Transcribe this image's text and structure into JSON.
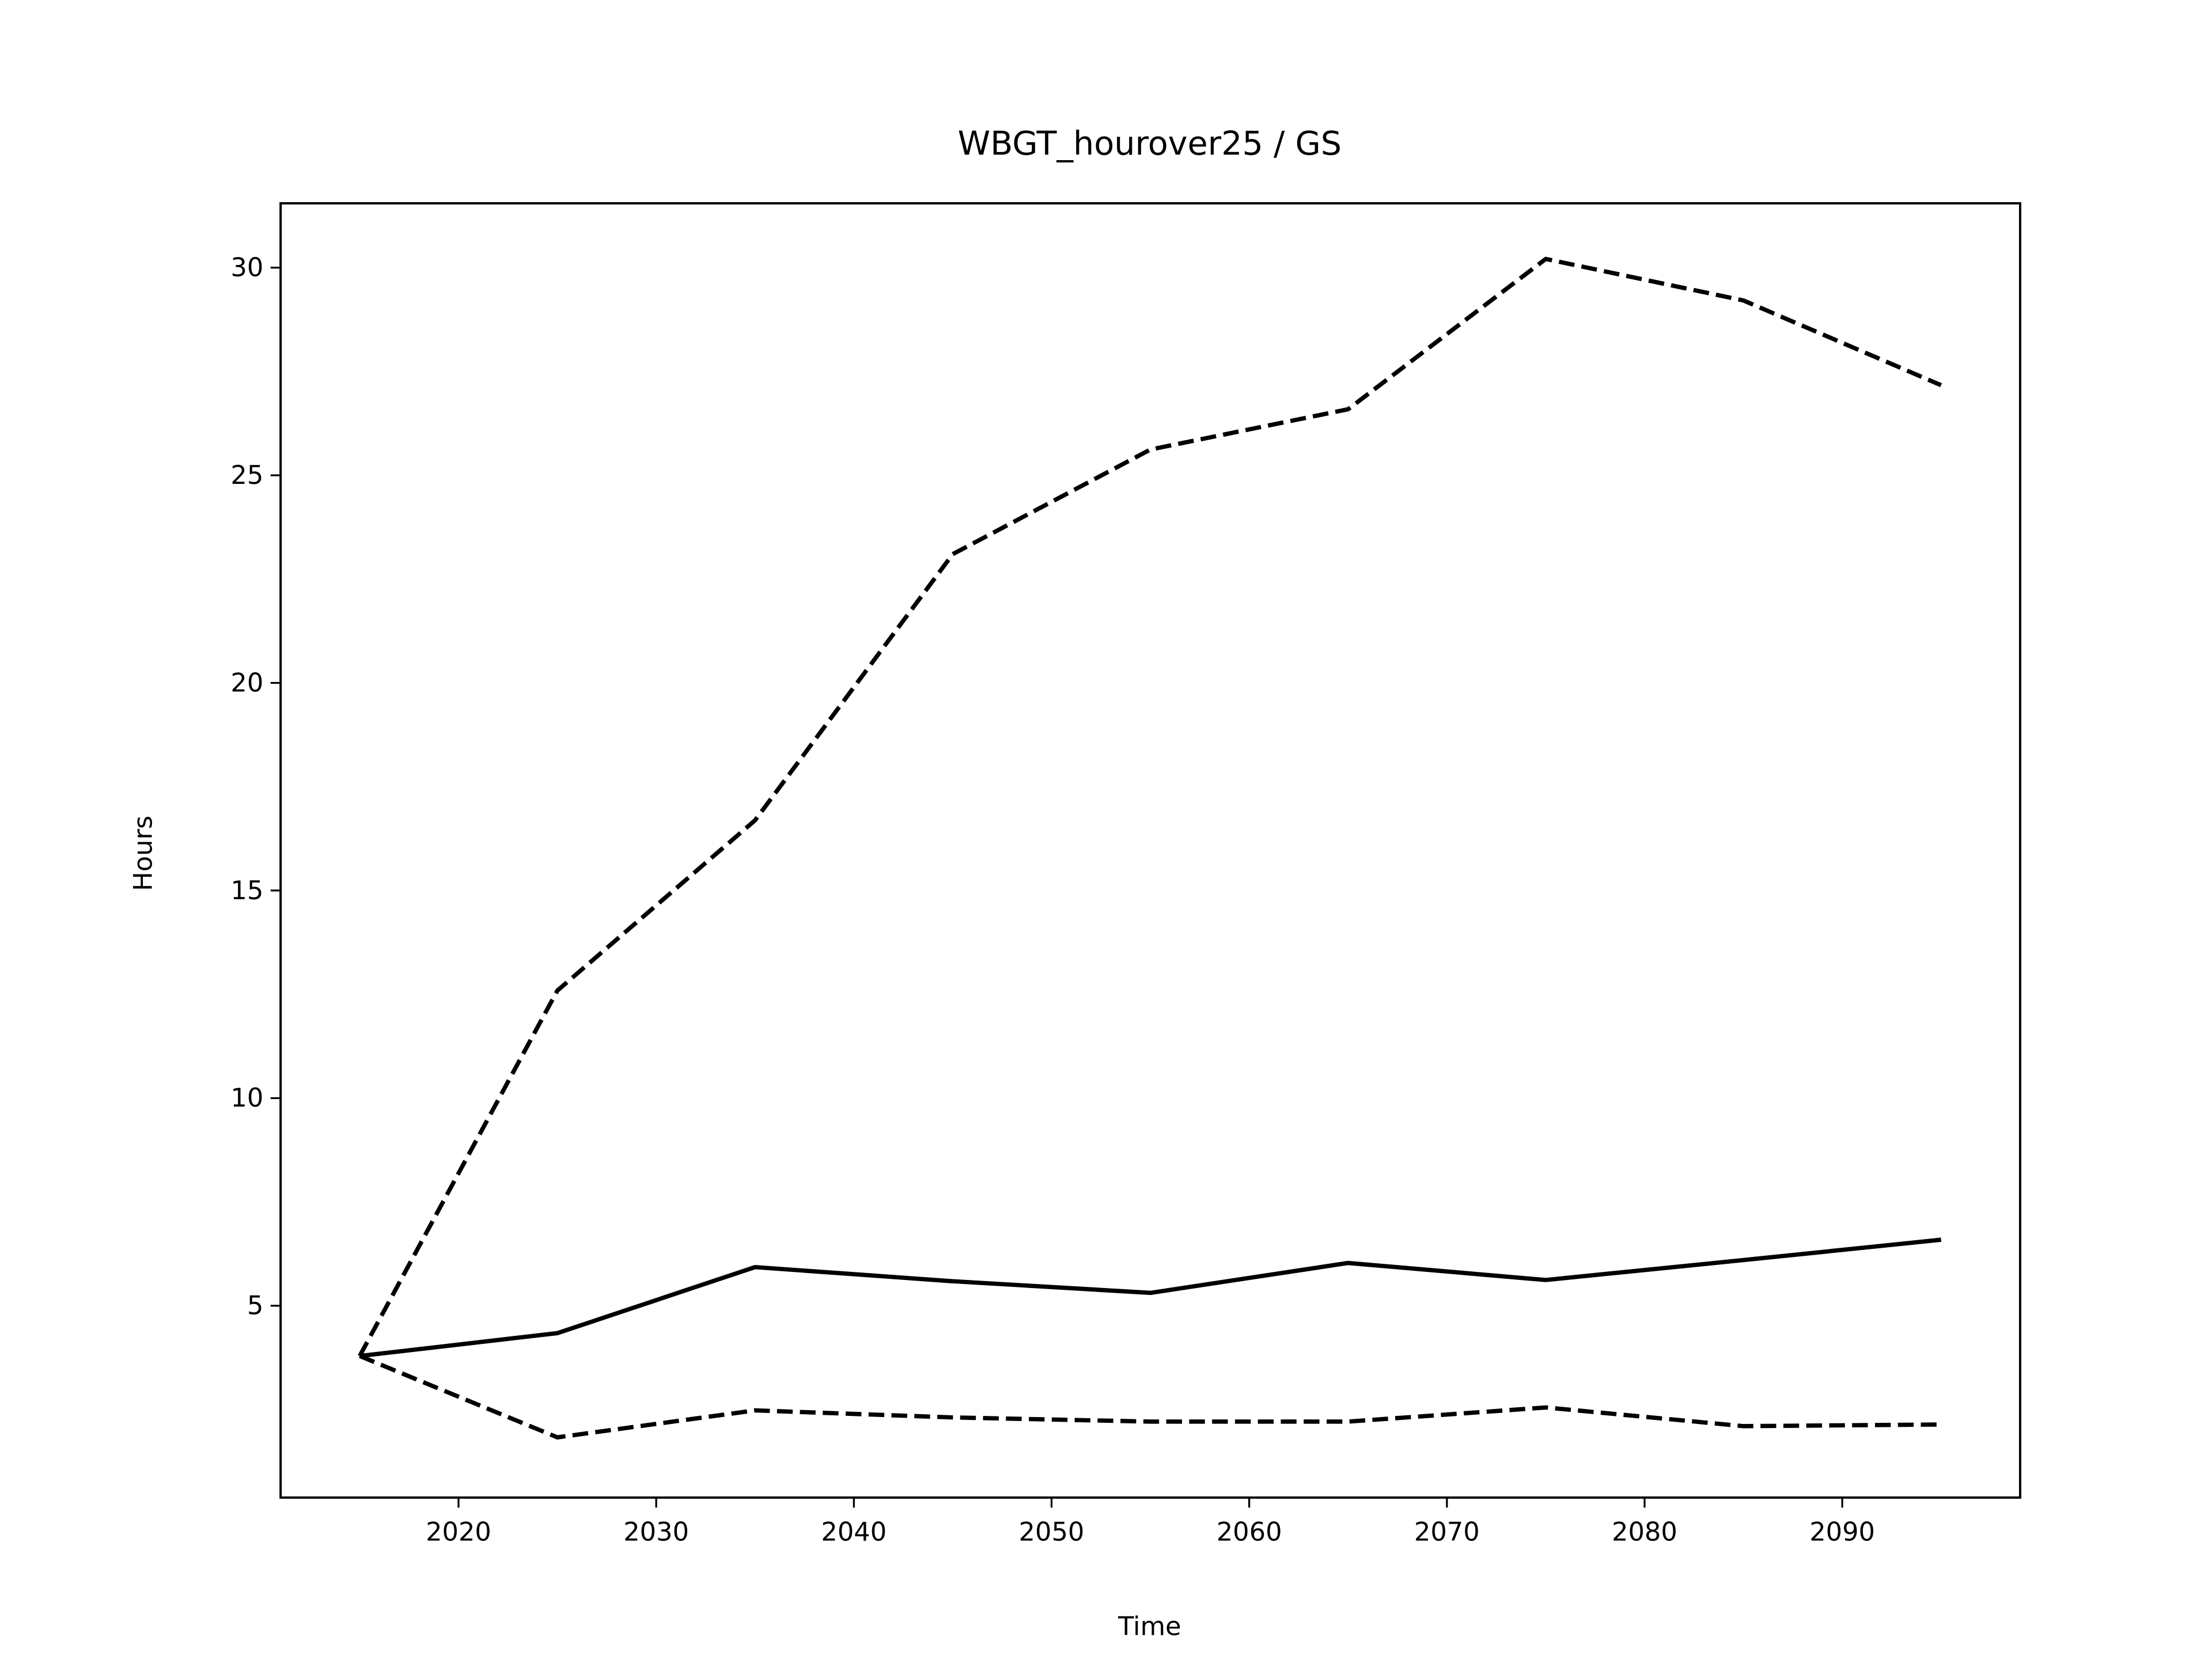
{
  "chart_data": {
    "type": "line",
    "title": "WBGT_hourover25 / GS",
    "x_label": "Time",
    "y_label": "Hours",
    "x": [
      2015,
      2025,
      2035,
      2045,
      2055,
      2065,
      2075,
      2085,
      2095
    ],
    "series": [
      {
        "color": "#000000",
        "linestyle": "solid",
        "values": [
          3.79,
          4.34,
          5.93,
          5.59,
          5.31,
          6.03,
          5.62,
          6.1,
          6.59
        ]
      },
      {
        "color": "#000000",
        "linestyle": "dashed",
        "values": [
          3.79,
          12.59,
          16.69,
          23.1,
          25.62,
          26.59,
          30.21,
          29.21,
          27.17
        ]
      },
      {
        "color": "#000000",
        "linestyle": "dashed",
        "values": [
          3.79,
          1.83,
          2.48,
          2.31,
          2.21,
          2.21,
          2.55,
          2.1,
          2.14
        ]
      }
    ],
    "xlim": [
      2011,
      2099
    ],
    "ylim": [
      0.38,
      31.55
    ],
    "xticks": [
      2020,
      2030,
      2040,
      2050,
      2060,
      2070,
      2080,
      2090
    ],
    "yticks": [
      5,
      10,
      15,
      20,
      25,
      30
    ]
  }
}
